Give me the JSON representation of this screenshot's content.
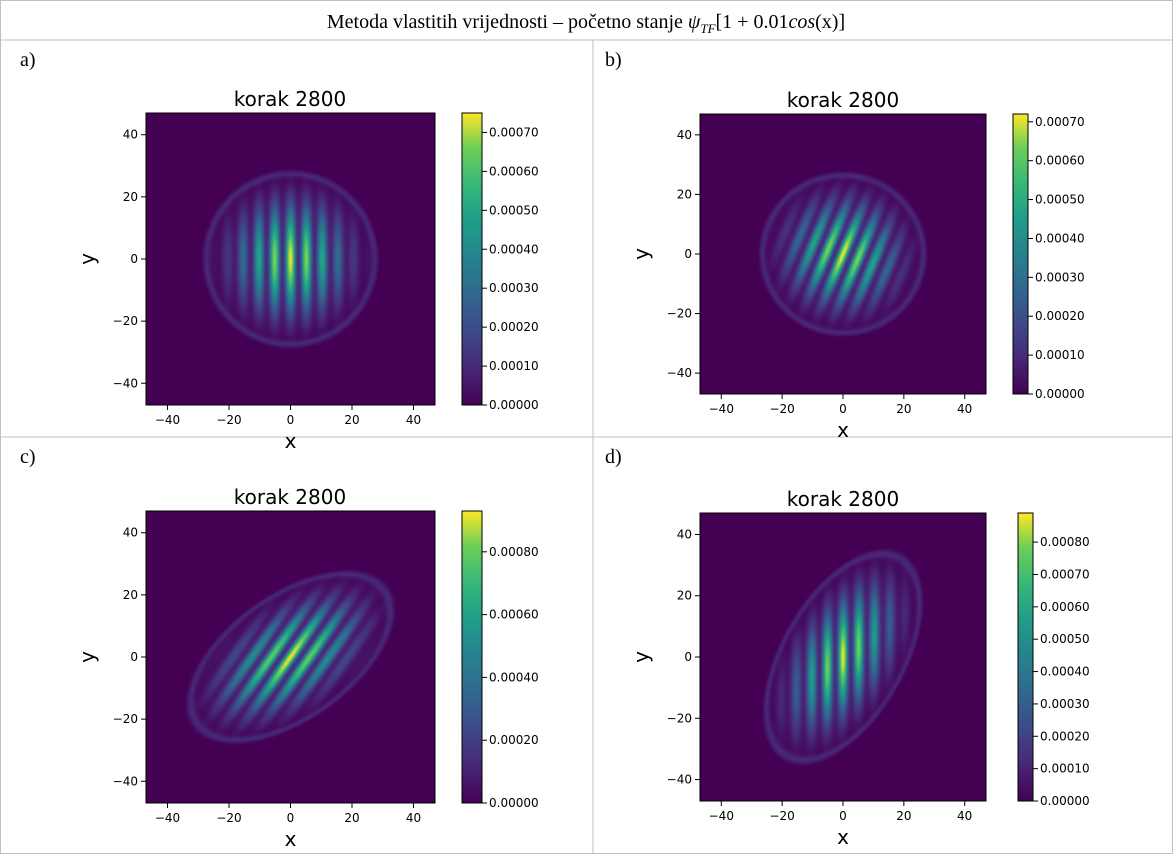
{
  "figure": {
    "title_main": "Metoda vlastitih vrijednosti – početno stanje ",
    "title_psi": "ψ",
    "title_subscript": "TF",
    "title_bracket": "[1 + 0.01",
    "title_cos": "cos",
    "title_end": "(x)]"
  },
  "colors": {
    "viridis_low": "#440154",
    "viridis_mid": "#21918c",
    "viridis_high": "#fde725",
    "table_border": "#bfbfbf"
  },
  "chart_data": [
    {
      "type": "heatmap",
      "panel": "a)",
      "title": "korak 2800",
      "xlabel": "x",
      "ylabel": "y",
      "xlim": [
        -47,
        47
      ],
      "ylim": [
        -47,
        47
      ],
      "xticks": [
        -40,
        -20,
        0,
        20,
        40
      ],
      "yticks": [
        -40,
        -20,
        0,
        20,
        40
      ],
      "colorbar_ticks": [
        "0.00000",
        "0.00010",
        "0.00020",
        "0.00030",
        "0.00040",
        "0.00050",
        "0.00060",
        "0.00070"
      ],
      "colorbar_max": 0.00075,
      "cloud": {
        "center": [
          0,
          0
        ],
        "semi_axes": [
          28,
          28
        ],
        "rotation_deg": 0,
        "stripe_angle_deg": 0,
        "stripe_period": 5.2
      }
    },
    {
      "type": "heatmap",
      "panel": "b)",
      "title": "korak 2800",
      "xlabel": "x",
      "ylabel": "y",
      "xlim": [
        -47,
        47
      ],
      "ylim": [
        -47,
        47
      ],
      "xticks": [
        -40,
        -20,
        0,
        20,
        40
      ],
      "yticks": [
        -40,
        -20,
        0,
        20,
        40
      ],
      "colorbar_ticks": [
        "0.00000",
        "0.00010",
        "0.00020",
        "0.00030",
        "0.00040",
        "0.00050",
        "0.00060",
        "0.00070"
      ],
      "colorbar_max": 0.00072,
      "cloud": {
        "center": [
          0,
          0
        ],
        "semi_axes": [
          27,
          27
        ],
        "rotation_deg": 0,
        "stripe_angle_deg": 22,
        "stripe_period": 5.2
      }
    },
    {
      "type": "heatmap",
      "panel": "c)",
      "title": "korak 2800",
      "xlabel": "x",
      "ylabel": "y",
      "xlim": [
        -47,
        47
      ],
      "ylim": [
        -47,
        47
      ],
      "xticks": [
        -40,
        -20,
        0,
        20,
        40
      ],
      "yticks": [
        -40,
        -20,
        0,
        20,
        40
      ],
      "colorbar_ticks": [
        "0.00000",
        "0.00020",
        "0.00040",
        "0.00060",
        "0.00080"
      ],
      "colorbar_max": 0.00093,
      "cloud": {
        "center": [
          0,
          0
        ],
        "semi_axes": [
          38,
          20
        ],
        "rotation_deg": 35,
        "stripe_angle_deg": 35,
        "stripe_period": 5.2
      }
    },
    {
      "type": "heatmap",
      "panel": "d)",
      "title": "korak 2800",
      "xlabel": "x",
      "ylabel": "y",
      "xlim": [
        -47,
        47
      ],
      "ylim": [
        -47,
        47
      ],
      "xticks": [
        -40,
        -20,
        0,
        20,
        40
      ],
      "yticks": [
        -40,
        -20,
        0,
        20,
        40
      ],
      "colorbar_ticks": [
        "0.00000",
        "0.00010",
        "0.00020",
        "0.00030",
        "0.00040",
        "0.00050",
        "0.00060",
        "0.00070",
        "0.00080"
      ],
      "colorbar_max": 0.00089,
      "cloud": {
        "center": [
          0,
          0
        ],
        "semi_axes": [
          20,
          38
        ],
        "rotation_deg": -30,
        "stripe_angle_deg": 0,
        "stripe_period": 5.2
      }
    }
  ]
}
